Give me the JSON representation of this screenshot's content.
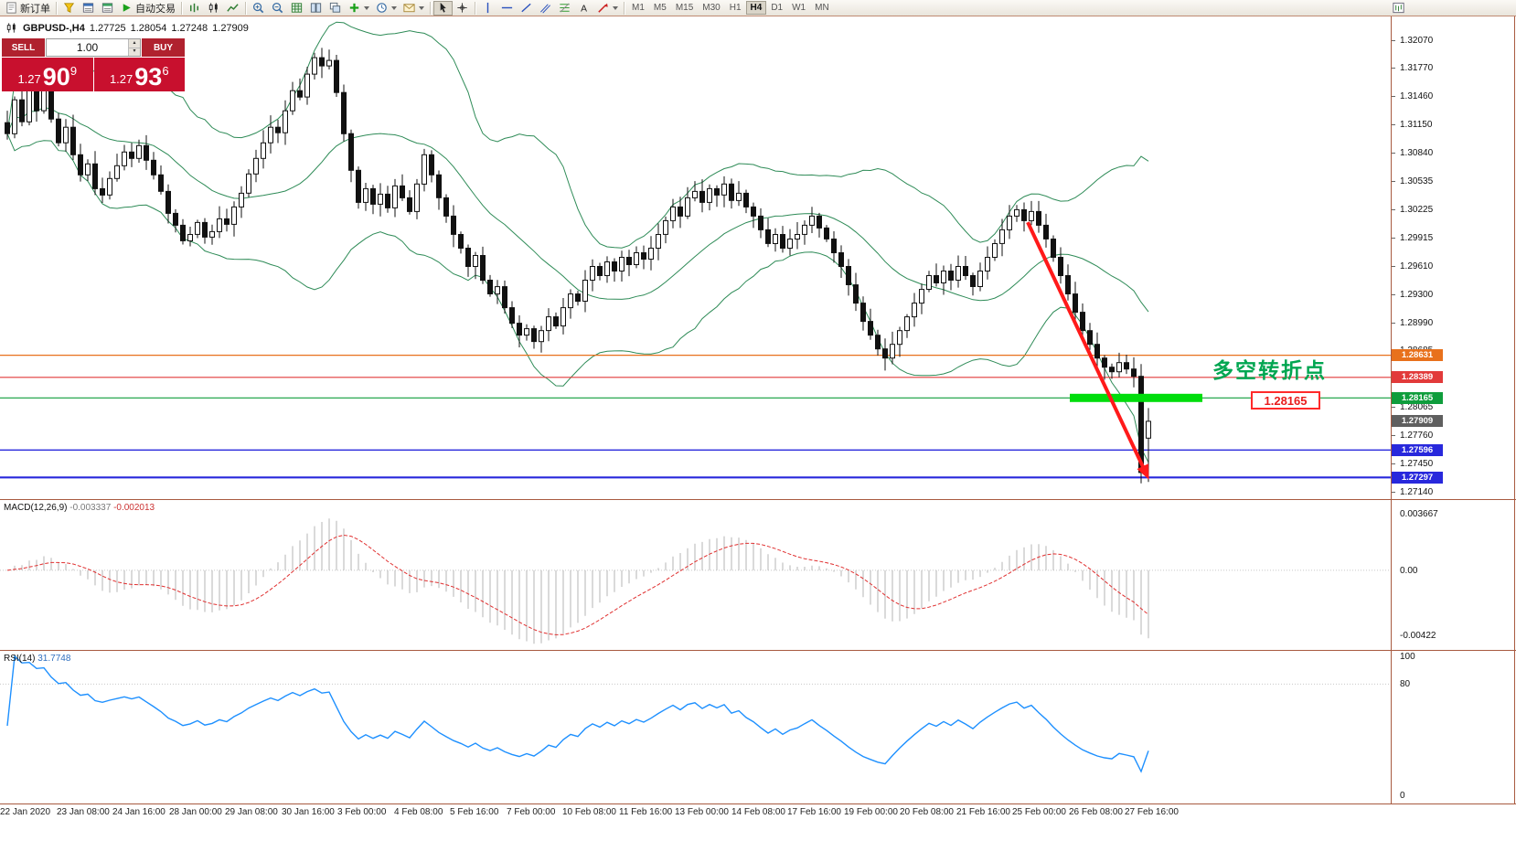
{
  "toolbar": {
    "items": [
      {
        "type": "button",
        "name": "new-order-button",
        "icon": "new-order-icon",
        "label": "新订单"
      },
      {
        "type": "sep"
      },
      {
        "type": "icon",
        "name": "alerts-button",
        "icon": "alerts-icon"
      },
      {
        "type": "icon",
        "name": "market-watch-button",
        "icon": "market-watch-icon"
      },
      {
        "type": "icon",
        "name": "data-window-button",
        "icon": "data-window-icon"
      },
      {
        "type": "button",
        "name": "autotrade-button",
        "icon": "autotrade-icon",
        "label": "自动交易"
      },
      {
        "type": "sep"
      },
      {
        "type": "icon",
        "name": "bar-chart-button",
        "icon": "bar-chart-icon"
      },
      {
        "type": "icon",
        "name": "candle-chart-button",
        "icon": "candle-chart-icon"
      },
      {
        "type": "icon",
        "name": "line-chart-button",
        "icon": "line-chart-icon"
      },
      {
        "type": "sep"
      },
      {
        "type": "icon",
        "name": "zoom-in-button",
        "icon": "zoom-in-icon"
      },
      {
        "type": "icon",
        "name": "zoom-out-button",
        "icon": "zoom-out-icon"
      },
      {
        "type": "icon",
        "name": "grid-button",
        "icon": "grid-icon"
      },
      {
        "type": "icon",
        "name": "tile-windows-button",
        "icon": "tile-icon"
      },
      {
        "type": "icon",
        "name": "cascade-windows-button",
        "icon": "cascade-icon"
      },
      {
        "type": "icon",
        "name": "indicators-button",
        "icon": "indicators-icon",
        "caret": true
      },
      {
        "type": "icon",
        "name": "periods-button",
        "icon": "periods-icon",
        "caret": true
      },
      {
        "type": "icon",
        "name": "templates-button",
        "icon": "templates-icon",
        "caret": true
      },
      {
        "type": "sep"
      },
      {
        "type": "icon",
        "name": "cursor-button",
        "icon": "cursor-icon",
        "active": true
      },
      {
        "type": "icon",
        "name": "crosshair-button",
        "icon": "crosshair-icon"
      },
      {
        "type": "sep"
      },
      {
        "type": "icon",
        "name": "vertical-line-button",
        "icon": "vline-icon"
      },
      {
        "type": "icon",
        "name": "horizontal-line-button",
        "icon": "hline-icon"
      },
      {
        "type": "icon",
        "name": "trendline-button",
        "icon": "trendline-icon"
      },
      {
        "type": "icon",
        "name": "channel-button",
        "icon": "channel-icon"
      },
      {
        "type": "icon",
        "name": "fibonacci-button",
        "icon": "fibonacci-icon"
      },
      {
        "type": "icon",
        "name": "text-button",
        "icon": "text-icon"
      },
      {
        "type": "icon",
        "name": "arrows-button",
        "icon": "arrows-icon",
        "caret": true
      },
      {
        "type": "sep"
      },
      {
        "type": "tf",
        "label": "M1"
      },
      {
        "type": "tf",
        "label": "M5"
      },
      {
        "type": "tf",
        "label": "M15"
      },
      {
        "type": "tf",
        "label": "M30"
      },
      {
        "type": "tf",
        "label": "H1"
      },
      {
        "type": "tf",
        "label": "H4",
        "active": true
      },
      {
        "type": "tf",
        "label": "D1"
      },
      {
        "type": "tf",
        "label": "W1"
      },
      {
        "type": "tf",
        "label": "MN"
      }
    ],
    "right_icon": {
      "name": "chart-shift-button",
      "icon": "chart-window-icon"
    }
  },
  "chart": {
    "symbol_period": "GBPUSD-,H4",
    "ohlc_text": {
      "open": "1.27725",
      "high": "1.28054",
      "low": "1.27248",
      "close": "1.27909"
    },
    "trade_panel": {
      "sell_label": "SELL",
      "buy_label": "BUY",
      "volume": "1.00",
      "sell_price": {
        "head": "1.27",
        "big": "90",
        "sup": "9"
      },
      "buy_price": {
        "head": "1.27",
        "big": "93",
        "sup": "6"
      }
    },
    "annotations": {
      "turning_point_text": "多空转折点",
      "turning_point_color": "#00a651",
      "price_flag_text": "1.28165",
      "highlight_color": "#00dd0c",
      "arrow_color": "#ff1a1a"
    },
    "levels": [
      {
        "price": 1.28631,
        "badge": "1.28631",
        "color": "#e8711c",
        "width": 1.2
      },
      {
        "price": 1.28389,
        "badge": "1.28389",
        "color": "#e23a3a",
        "width": 1.2
      },
      {
        "price": 1.28165,
        "badge": "1.28165",
        "color": "#0f9d3c",
        "width": 1.2,
        "highlight": true
      },
      {
        "price": 1.27596,
        "badge": "1.27596",
        "color": "#2828dc",
        "width": 1.3
      },
      {
        "price": 1.27297,
        "badge": "1.27297",
        "color": "#2828dc",
        "width": 2.2
      }
    ],
    "current_price_badge": {
      "value": 1.27909,
      "text": "1.27909",
      "color": "#5f5f5f"
    },
    "price_ticks": [
      "1.32070",
      "1.31770",
      "1.31460",
      "1.31150",
      "1.30840",
      "1.30535",
      "1.30225",
      "1.29915",
      "1.29610",
      "1.29300",
      "1.28990",
      "1.28685",
      "1.28065",
      "1.27760",
      "1.27450",
      "1.27140"
    ]
  },
  "macd": {
    "name": "MACD(12,26,9)",
    "value1": "-0.003337",
    "value2": "-0.002013",
    "scale": [
      "0.003667",
      "0.00",
      "-0.00422"
    ]
  },
  "rsi": {
    "name": "RSI(14)",
    "value": "31.7748",
    "scale": [
      "100",
      "80",
      "0"
    ]
  },
  "time_axis": {
    "labels": [
      "22 Jan 2020",
      "23 Jan 08:00",
      "24 Jan 16:00",
      "28 Jan 00:00",
      "29 Jan 08:00",
      "30 Jan 16:00",
      "3 Feb 00:00",
      "4 Feb 08:00",
      "5 Feb 16:00",
      "7 Feb 00:00",
      "10 Feb 08:00",
      "11 Feb 16:00",
      "13 Feb 00:00",
      "14 Feb 08:00",
      "17 Feb 16:00",
      "19 Feb 00:00",
      "20 Feb 08:00",
      "21 Feb 16:00",
      "25 Feb 00:00",
      "26 Feb 08:00",
      "27 Feb 16:00"
    ]
  },
  "chart_data": {
    "type": "candlestick",
    "symbol": "GBPUSD",
    "period": "H4",
    "indicators": [
      "Bollinger Bands(20,2)",
      "MACD(12,26,9)",
      "RSI(14)"
    ],
    "price_range": {
      "top": 1.3233,
      "bottom": 1.2706
    },
    "closes": [
      1.3105,
      1.3142,
      1.3118,
      1.3152,
      1.313,
      1.3156,
      1.3121,
      1.3095,
      1.3112,
      1.3082,
      1.306,
      1.3072,
      1.3045,
      1.3038,
      1.3056,
      1.307,
      1.3085,
      1.3078,
      1.3092,
      1.3076,
      1.306,
      1.3042,
      1.3018,
      1.3005,
      1.2988,
      1.2995,
      1.3008,
      1.2992,
      1.2998,
      1.3012,
      1.3006,
      1.3025,
      1.304,
      1.3061,
      1.3078,
      1.3095,
      1.3112,
      1.3106,
      1.313,
      1.3152,
      1.3145,
      1.317,
      1.3188,
      1.3179,
      1.3185,
      1.315,
      1.3105,
      1.3065,
      1.303,
      1.3045,
      1.3028,
      1.3039,
      1.3024,
      1.3048,
      1.3035,
      1.302,
      1.305,
      1.3082,
      1.306,
      1.3035,
      1.3015,
      1.2995,
      1.298,
      1.296,
      1.2972,
      1.2945,
      1.293,
      1.2938,
      1.2915,
      1.2898,
      1.2885,
      1.2892,
      1.2878,
      1.289,
      1.2905,
      1.2895,
      1.2915,
      1.293,
      1.2922,
      1.2945,
      1.296,
      1.295,
      1.2965,
      1.2955,
      1.297,
      1.2962,
      1.2975,
      1.2968,
      1.298,
      1.2995,
      1.301,
      1.3025,
      1.3015,
      1.3035,
      1.3042,
      1.303,
      1.3045,
      1.3038,
      1.305,
      1.3032,
      1.304,
      1.3025,
      1.3015,
      1.3,
      1.2985,
      1.2995,
      1.298,
      1.299,
      1.2995,
      1.3005,
      1.3015,
      1.3002,
      1.299,
      1.2975,
      1.296,
      1.294,
      1.292,
      1.29,
      1.2885,
      1.287,
      1.286,
      1.2875,
      1.289,
      1.2905,
      1.292,
      1.2935,
      1.295,
      1.2942,
      1.2955,
      1.2945,
      1.296,
      1.295,
      1.2938,
      1.2955,
      1.297,
      1.2985,
      1.3,
      1.3015,
      1.3022,
      1.301,
      1.302,
      1.3005,
      1.299,
      1.297,
      1.295,
      1.293,
      1.291,
      1.289,
      1.2875,
      1.286,
      1.285,
      1.2845,
      1.2855,
      1.2848,
      1.284,
      1.2735,
      1.27909
    ],
    "last_candle": {
      "open": 1.27725,
      "high": 1.28054,
      "low": 1.27248,
      "close": 1.27909
    }
  }
}
